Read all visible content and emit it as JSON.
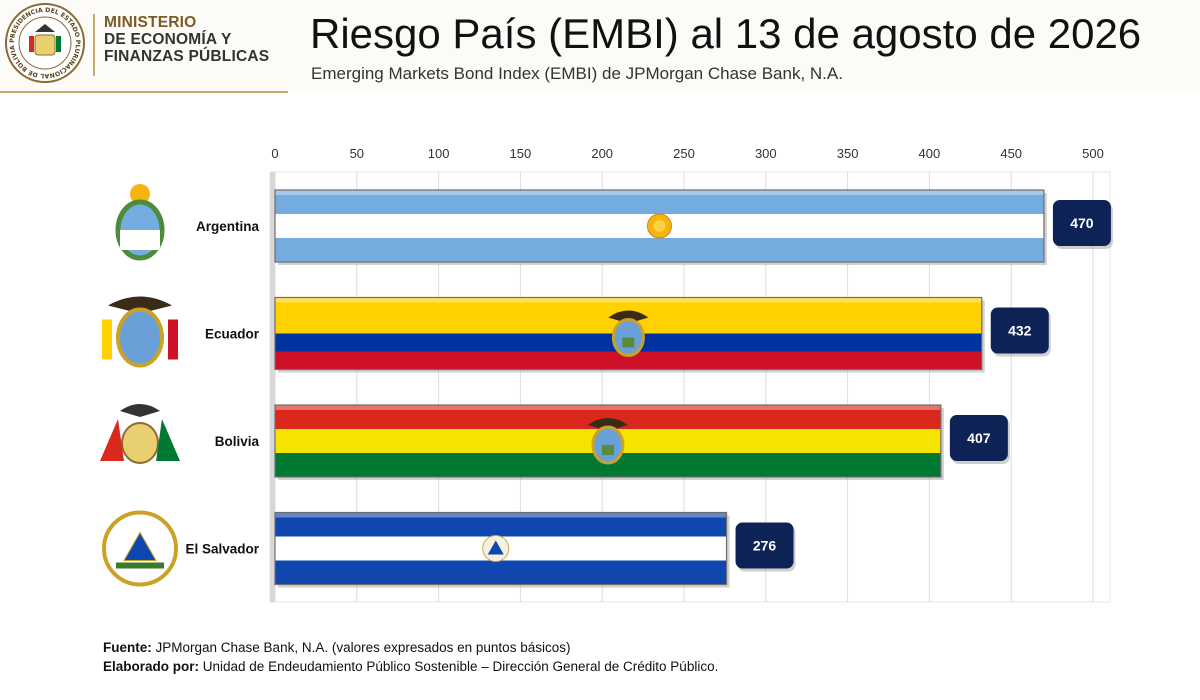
{
  "header": {
    "seal_ring_text": "PRESIDENCIA DEL ESTADO PLURINACIONAL DE BOLIVIA",
    "ministry_line1": "MINISTERIO",
    "ministry_line2": "DE ECONOMÍA Y",
    "ministry_line3": "FINANZAS PÚBLICAS",
    "accent_color": "#c8a96a"
  },
  "chart_data": {
    "type": "bar",
    "orientation": "horizontal",
    "title": "Riesgo País (EMBI) al 13 de agosto de 2026",
    "subtitle": "Emerging Markets Bond Index (EMBI) de JPMorgan Chase Bank, N.A.",
    "categories": [
      "Argentina",
      "Ecuador",
      "Bolivia",
      "El Salvador"
    ],
    "values": [
      470,
      432,
      407,
      276
    ],
    "xlim": [
      0,
      500
    ],
    "xticks": [
      0,
      50,
      100,
      150,
      200,
      250,
      300,
      350,
      400,
      450,
      500
    ],
    "x_axis_position": "top",
    "grid": true,
    "value_labels": true,
    "bar_fills": [
      [
        "#74acdf",
        "#ffffff",
        "#74acdf"
      ],
      [
        "#ffd100",
        "#ffd100",
        "#0033a0",
        "#ce1126"
      ],
      [
        "#da291c",
        "#f4e400",
        "#007a33"
      ],
      [
        "#0f47af",
        "#ffffff",
        "#0f47af"
      ]
    ],
    "label_box_color": "#0d2356"
  },
  "footer": {
    "source_label": "Fuente:",
    "source_text": " JPMorgan Chase Bank, N.A. (valores expresados en puntos básicos)",
    "author_label": "Elaborado por:",
    "author_text": " Unidad de Endeudamiento Público Sostenible – Dirección General de Crédito Público."
  }
}
